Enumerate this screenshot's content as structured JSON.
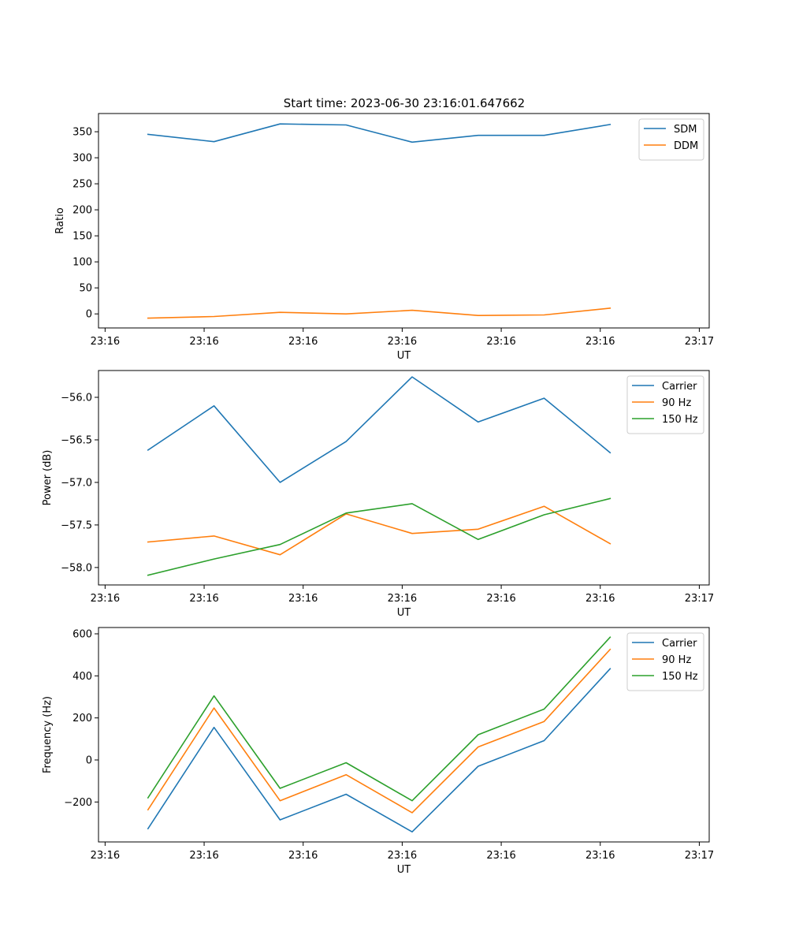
{
  "figure": {
    "title": "Start time: 2023-06-30 23:16:01.647662"
  },
  "colors": {
    "blue": "#1f77b4",
    "orange": "#ff7f0e",
    "green": "#2ca02c"
  },
  "chart_data": [
    {
      "type": "line",
      "title": "Start time: 2023-06-30 23:16:01.647662",
      "xlabel": "UT",
      "ylabel": "Ratio",
      "x": [
        1,
        2,
        3,
        4,
        5,
        6,
        7,
        8
      ],
      "xlim": [
        0.25,
        9.5
      ],
      "xticks": [
        0.35,
        1.85,
        3.35,
        4.85,
        6.35,
        7.85,
        9.35
      ],
      "xtick_labels": [
        "23:16",
        "23:16",
        "23:16",
        "23:16",
        "23:16",
        "23:16",
        "23:17"
      ],
      "ylim": [
        -27,
        385
      ],
      "yticks": [
        0,
        50,
        100,
        150,
        200,
        250,
        300,
        350
      ],
      "ytick_labels": [
        "0",
        "50",
        "100",
        "150",
        "200",
        "250",
        "300",
        "350"
      ],
      "legend_position": "top-right",
      "grid": false,
      "series": [
        {
          "name": "SDM",
          "color": "#1f77b4",
          "values": [
            345,
            331,
            365,
            363,
            330,
            343,
            343,
            364
          ]
        },
        {
          "name": "DDM",
          "color": "#ff7f0e",
          "values": [
            -8,
            -5,
            3,
            0,
            7,
            -3,
            -2,
            11
          ]
        }
      ]
    },
    {
      "type": "line",
      "xlabel": "UT",
      "ylabel": "Power (dB)",
      "x": [
        1,
        2,
        3,
        4,
        5,
        6,
        7,
        8
      ],
      "xlim": [
        0.25,
        9.5
      ],
      "xticks": [
        0.35,
        1.85,
        3.35,
        4.85,
        6.35,
        7.85,
        9.35
      ],
      "xtick_labels": [
        "23:16",
        "23:16",
        "23:16",
        "23:16",
        "23:16",
        "23:16",
        "23:17"
      ],
      "ylim": [
        -58.205,
        -55.685
      ],
      "yticks": [
        -58.0,
        -57.5,
        -57.0,
        -56.5,
        -56.0
      ],
      "ytick_labels": [
        "−58.0",
        "−57.5",
        "−57.0",
        "−56.5",
        "−56.0"
      ],
      "legend_position": "top-right",
      "grid": false,
      "series": [
        {
          "name": "Carrier",
          "color": "#1f77b4",
          "values": [
            -56.62,
            -56.1,
            -57.0,
            -56.52,
            -55.76,
            -56.29,
            -56.01,
            -56.65
          ]
        },
        {
          "name": "90 Hz",
          "color": "#ff7f0e",
          "values": [
            -57.7,
            -57.63,
            -57.85,
            -57.37,
            -57.6,
            -57.55,
            -57.28,
            -57.72
          ]
        },
        {
          "name": "150 Hz",
          "color": "#2ca02c",
          "values": [
            -58.09,
            -57.9,
            -57.73,
            -57.36,
            -57.25,
            -57.67,
            -57.38,
            -57.19
          ]
        }
      ]
    },
    {
      "type": "line",
      "xlabel": "UT",
      "ylabel": "Frequency (Hz)",
      "x": [
        1,
        2,
        3,
        4,
        5,
        6,
        7,
        8
      ],
      "xlim": [
        0.25,
        9.5
      ],
      "xticks": [
        0.35,
        1.85,
        3.35,
        4.85,
        6.35,
        7.85,
        9.35
      ],
      "xtick_labels": [
        "23:16",
        "23:16",
        "23:16",
        "23:16",
        "23:16",
        "23:16",
        "23:17"
      ],
      "ylim": [
        -390,
        630
      ],
      "yticks": [
        -200,
        0,
        200,
        400,
        600
      ],
      "ytick_labels": [
        "−200",
        "0",
        "200",
        "400",
        "600"
      ],
      "legend_position": "top-right",
      "grid": false,
      "series": [
        {
          "name": "Carrier",
          "color": "#1f77b4",
          "values": [
            -327,
            155,
            -285,
            -163,
            -342,
            -30,
            92,
            434
          ]
        },
        {
          "name": "90 Hz",
          "color": "#ff7f0e",
          "values": [
            -237,
            247,
            -194,
            -70,
            -251,
            62,
            183,
            526
          ]
        },
        {
          "name": "150 Hz",
          "color": "#2ca02c",
          "values": [
            -180,
            305,
            -135,
            -13,
            -194,
            120,
            242,
            584
          ]
        }
      ]
    }
  ]
}
